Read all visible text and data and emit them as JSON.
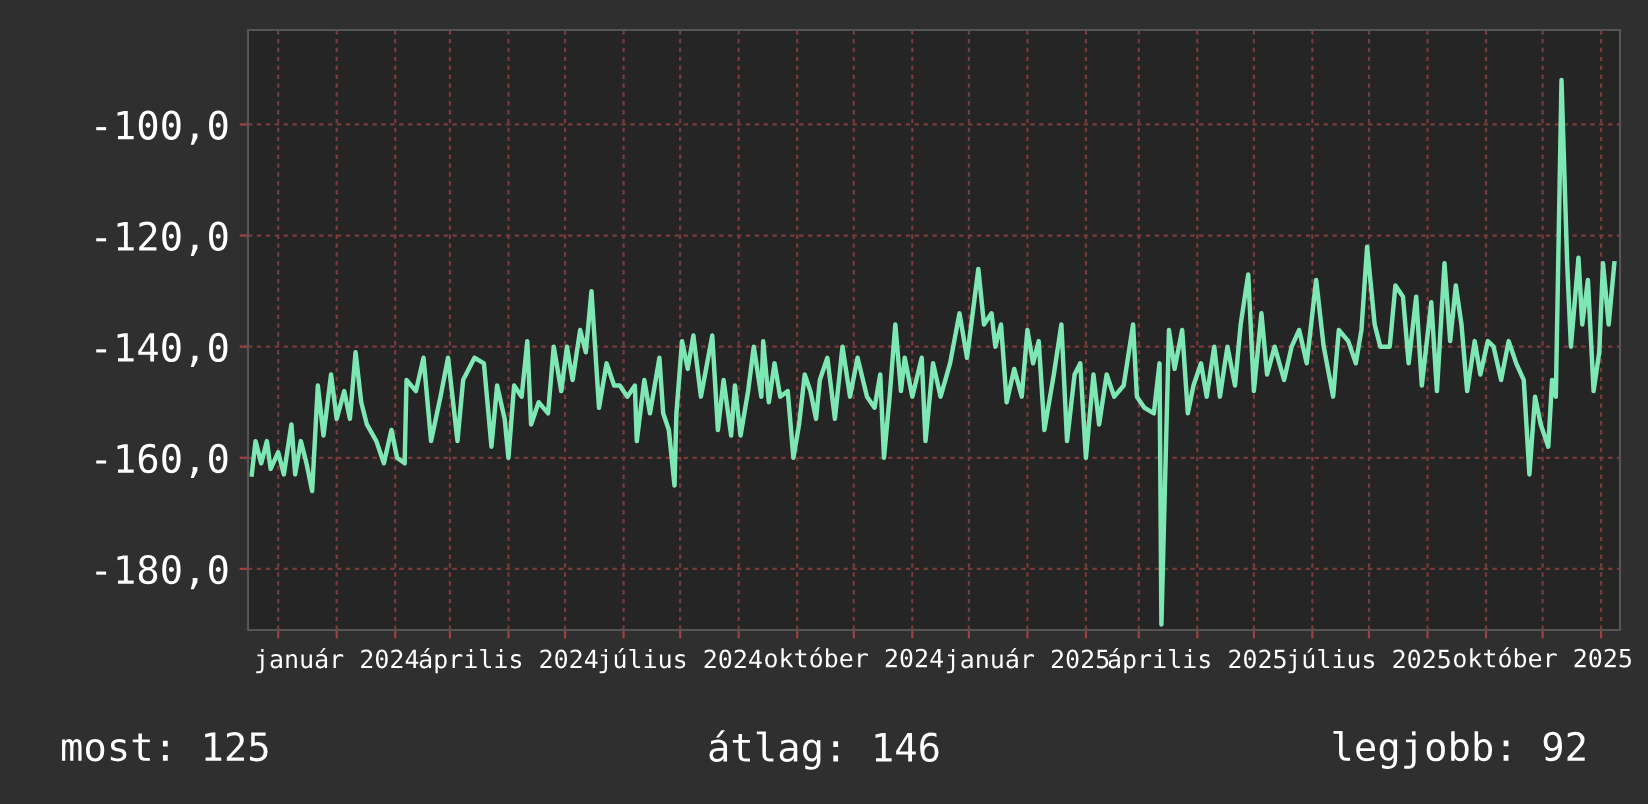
{
  "chart_data": {
    "type": "line",
    "x": [
      "2023-11-17",
      "2023-11-19",
      "2023-11-22",
      "2023-11-25",
      "2023-11-27",
      "2023-12-01",
      "2023-12-04",
      "2023-12-08",
      "2023-12-10",
      "2023-12-13",
      "2023-12-16",
      "2023-12-19",
      "2023-12-22",
      "2023-12-25",
      "2023-12-29",
      "2024-01-01",
      "2024-01-05",
      "2024-01-08",
      "2024-01-11",
      "2024-01-14",
      "2024-01-17",
      "2024-01-22",
      "2024-01-26",
      "2024-01-30",
      "2024-02-02",
      "2024-02-06",
      "2024-02-07",
      "2024-02-12",
      "2024-02-16",
      "2024-02-20",
      "2024-02-25",
      "2024-02-29",
      "2024-03-05",
      "2024-03-08",
      "2024-03-14",
      "2024-03-19",
      "2024-03-23",
      "2024-03-26",
      "2024-03-30",
      "2024-04-01",
      "2024-04-04",
      "2024-04-08",
      "2024-04-11",
      "2024-04-13",
      "2024-04-17",
      "2024-04-22",
      "2024-04-25",
      "2024-04-29",
      "2024-05-02",
      "2024-05-05",
      "2024-05-09",
      "2024-05-12",
      "2024-05-15",
      "2024-05-19",
      "2024-05-23",
      "2024-05-27",
      "2024-05-30",
      "2024-06-03",
      "2024-06-07",
      "2024-06-08",
      "2024-06-12",
      "2024-06-15",
      "2024-06-20",
      "2024-06-22",
      "2024-06-25",
      "2024-06-28",
      "2024-06-29",
      "2024-07-02",
      "2024-07-05",
      "2024-07-08",
      "2024-07-12",
      "2024-07-18",
      "2024-07-21",
      "2024-07-24",
      "2024-07-28",
      "2024-07-30",
      "2024-08-02",
      "2024-08-06",
      "2024-08-09",
      "2024-08-13",
      "2024-08-14",
      "2024-08-17",
      "2024-08-20",
      "2024-08-23",
      "2024-08-27",
      "2024-08-30",
      "2024-09-02",
      "2024-09-05",
      "2024-09-08",
      "2024-09-11",
      "2024-09-13",
      "2024-09-17",
      "2024-09-21",
      "2024-09-25",
      "2024-09-29",
      "2024-10-03",
      "2024-10-08",
      "2024-10-12",
      "2024-10-15",
      "2024-10-17",
      "2024-10-20",
      "2024-10-23",
      "2024-10-26",
      "2024-10-28",
      "2024-11-01",
      "2024-11-06",
      "2024-11-08",
      "2024-11-12",
      "2024-11-16",
      "2024-11-21",
      "2024-11-26",
      "2024-11-30",
      "2024-12-06",
      "2024-12-09",
      "2024-12-13",
      "2024-12-15",
      "2024-12-18",
      "2024-12-21",
      "2024-12-25",
      "2024-12-29",
      "2025-01-01",
      "2025-01-04",
      "2025-01-07",
      "2025-01-10",
      "2025-01-15",
      "2025-01-19",
      "2025-01-22",
      "2025-01-26",
      "2025-01-29",
      "2025-02-01",
      "2025-02-05",
      "2025-02-08",
      "2025-02-12",
      "2025-02-16",
      "2025-02-21",
      "2025-02-26",
      "2025-02-28",
      "2025-03-04",
      "2025-03-09",
      "2025-03-12",
      "2025-03-13",
      "2025-03-17",
      "2025-03-20",
      "2025-03-24",
      "2025-03-27",
      "2025-03-30",
      "2025-04-03",
      "2025-04-06",
      "2025-04-10",
      "2025-04-13",
      "2025-04-17",
      "2025-04-21",
      "2025-04-24",
      "2025-04-28",
      "2025-05-01",
      "2025-05-05",
      "2025-05-08",
      "2025-05-12",
      "2025-05-17",
      "2025-05-21",
      "2025-05-25",
      "2025-05-29",
      "2025-06-03",
      "2025-06-07",
      "2025-06-12",
      "2025-06-15",
      "2025-06-20",
      "2025-06-24",
      "2025-06-27",
      "2025-06-30",
      "2025-07-04",
      "2025-07-07",
      "2025-07-12",
      "2025-07-15",
      "2025-07-19",
      "2025-07-22",
      "2025-07-26",
      "2025-07-29",
      "2025-08-03",
      "2025-08-06",
      "2025-08-10",
      "2025-08-13",
      "2025-08-16",
      "2025-08-19",
      "2025-08-22",
      "2025-08-26",
      "2025-08-29",
      "2025-09-02",
      "2025-09-05",
      "2025-09-09",
      "2025-09-13",
      "2025-09-17",
      "2025-09-21",
      "2025-09-24",
      "2025-09-27",
      "2025-09-30",
      "2025-10-04",
      "2025-10-06",
      "2025-10-08",
      "2025-10-11",
      "2025-10-14",
      "2025-10-16",
      "2025-10-20",
      "2025-10-22",
      "2025-10-25",
      "2025-10-28",
      "2025-10-31",
      "2025-11-02",
      "2025-11-05",
      "2025-11-08"
    ],
    "series": [
      {
        "color": "#7ee8b4",
        "values": [
          -163,
          -157,
          -161,
          -157,
          -162,
          -159,
          -163,
          -154,
          -163,
          -157,
          -161,
          -166,
          -147,
          -156,
          -145,
          -153,
          -148,
          -153,
          -141,
          -150,
          -154,
          -157,
          -161,
          -155,
          -160,
          -161,
          -146,
          -148,
          -142,
          -157,
          -149,
          -142,
          -157,
          -146,
          -142,
          -143,
          -158,
          -147,
          -153,
          -160,
          -147,
          -149,
          -139,
          -154,
          -150,
          -152,
          -140,
          -148,
          -140,
          -146,
          -137,
          -141,
          -130,
          -151,
          -143,
          -147,
          -147,
          -149,
          -147,
          -157,
          -146,
          -152,
          -142,
          -152,
          -155,
          -165,
          -152,
          -139,
          -144,
          -138,
          -149,
          -138,
          -155,
          -146,
          -156,
          -147,
          -156,
          -148,
          -140,
          -149,
          -139,
          -150,
          -143,
          -149,
          -148,
          -160,
          -154,
          -145,
          -148,
          -153,
          -146,
          -142,
          -153,
          -140,
          -149,
          -142,
          -149,
          -151,
          -145,
          -160,
          -149,
          -136,
          -148,
          -142,
          -149,
          -142,
          -157,
          -143,
          -149,
          -143,
          -134,
          -142,
          -126,
          -136,
          -134,
          -140,
          -136,
          -150,
          -144,
          -149,
          -137,
          -143,
          -139,
          -155,
          -145,
          -136,
          -157,
          -145,
          -143,
          -160,
          -145,
          -154,
          -145,
          -149,
          -147,
          -136,
          -149,
          -151,
          -152,
          -143,
          -190,
          -137,
          -144,
          -137,
          -152,
          -147,
          -143,
          -149,
          -140,
          -149,
          -140,
          -147,
          -136,
          -127,
          -148,
          -134,
          -145,
          -140,
          -146,
          -140,
          -137,
          -143,
          -128,
          -140,
          -149,
          -137,
          -139,
          -143,
          -137,
          -122,
          -136,
          -140,
          -140,
          -129,
          -131,
          -143,
          -131,
          -147,
          -132,
          -148,
          -125,
          -139,
          -129,
          -136,
          -148,
          -139,
          -145,
          -139,
          -140,
          -146,
          -139,
          -143,
          -146,
          -163,
          -149,
          -154,
          -158,
          -146,
          -149,
          -92,
          -125,
          -140,
          -124,
          -136,
          -128,
          -148,
          -141,
          -125,
          -136,
          -125
        ]
      }
    ],
    "xlim": [
      "2023-11-15",
      "2025-11-11"
    ],
    "xticks": [
      {
        "value": "2023-12-01",
        "label": null
      },
      {
        "value": "2024-01-01",
        "label": "január 2024"
      },
      {
        "value": "2024-02-01",
        "label": null
      },
      {
        "value": "2024-03-01",
        "label": null
      },
      {
        "value": "2024-04-01",
        "label": "április 2024"
      },
      {
        "value": "2024-05-01",
        "label": null
      },
      {
        "value": "2024-06-01",
        "label": null
      },
      {
        "value": "2024-07-01",
        "label": "július 2024"
      },
      {
        "value": "2024-08-01",
        "label": null
      },
      {
        "value": "2024-09-01",
        "label": null
      },
      {
        "value": "2024-10-01",
        "label": "október 2024"
      },
      {
        "value": "2024-11-01",
        "label": null
      },
      {
        "value": "2024-12-01",
        "label": null
      },
      {
        "value": "2025-01-01",
        "label": "január 2025"
      },
      {
        "value": "2025-02-01",
        "label": null
      },
      {
        "value": "2025-03-01",
        "label": null
      },
      {
        "value": "2025-04-01",
        "label": "április 2025"
      },
      {
        "value": "2025-05-01",
        "label": null
      },
      {
        "value": "2025-06-01",
        "label": null
      },
      {
        "value": "2025-07-01",
        "label": "július 2025"
      },
      {
        "value": "2025-08-01",
        "label": null
      },
      {
        "value": "2025-09-01",
        "label": null
      },
      {
        "value": "2025-10-01",
        "label": "október 2025"
      },
      {
        "value": "2025-11-01",
        "label": null
      }
    ],
    "ylim": [
      -191,
      -83
    ],
    "yticks": [
      {
        "value": -180,
        "label": "-180,0"
      },
      {
        "value": -160,
        "label": "-160,0"
      },
      {
        "value": -140,
        "label": "-140,0"
      },
      {
        "value": -120,
        "label": "-120,0"
      },
      {
        "value": -100,
        "label": "-100,0"
      }
    ],
    "grid": true,
    "marker": "none",
    "line_style": "solid",
    "annotations": [
      "most: 125",
      "átlag: 146",
      "legjobb: 92"
    ]
  }
}
